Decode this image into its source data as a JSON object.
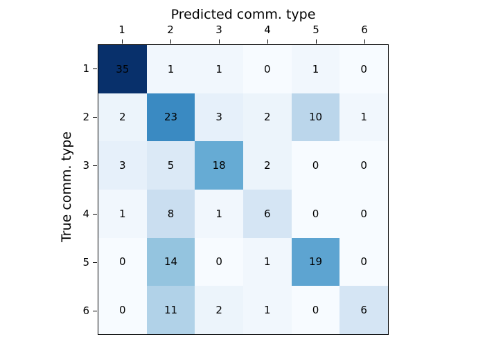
{
  "figure": {
    "background": "#ffffff",
    "frame_color": "#000000"
  },
  "chart_data": {
    "type": "heatmap",
    "title": "",
    "xlabel": "Predicted comm. type",
    "ylabel": "True comm. type",
    "xlabel_position": "top",
    "x_tick_side": "top",
    "y_tick_side": "left",
    "x_tick_labels": [
      "1",
      "2",
      "3",
      "4",
      "5",
      "6"
    ],
    "y_tick_labels": [
      "1",
      "2",
      "3",
      "4",
      "5",
      "6"
    ],
    "matrix": [
      [
        35,
        1,
        1,
        0,
        1,
        0
      ],
      [
        2,
        23,
        3,
        2,
        10,
        1
      ],
      [
        3,
        5,
        18,
        2,
        0,
        0
      ],
      [
        1,
        8,
        1,
        6,
        0,
        0
      ],
      [
        0,
        14,
        0,
        1,
        19,
        0
      ],
      [
        0,
        11,
        2,
        1,
        0,
        6
      ]
    ],
    "cell_colors": [
      [
        "#08306b",
        "#f1f7fd",
        "#f1f7fd",
        "#f7fbff",
        "#f1f7fd",
        "#f7fbff"
      ],
      [
        "#ecf4fb",
        "#3a8ac2",
        "#e6f0fa",
        "#ecf4fb",
        "#bbd6eb",
        "#f1f7fd"
      ],
      [
        "#e6f0fa",
        "#dbe9f6",
        "#66abd4",
        "#ecf4fb",
        "#f7fbff",
        "#f7fbff"
      ],
      [
        "#f1f7fd",
        "#cadef0",
        "#f1f7fd",
        "#d5e5f4",
        "#f7fbff",
        "#f7fbff"
      ],
      [
        "#f7fbff",
        "#94c4df",
        "#f7fbff",
        "#f1f7fd",
        "#5da4d1",
        "#f7fbff"
      ],
      [
        "#f7fbff",
        "#b1d2e8",
        "#ecf4fb",
        "#f1f7fd",
        "#f7fbff",
        "#d5e5f4"
      ]
    ],
    "colormap": "Blues",
    "vmin": 0,
    "vmax": 35,
    "grid": false,
    "legend": "none",
    "cell_text_color": "#000000"
  }
}
